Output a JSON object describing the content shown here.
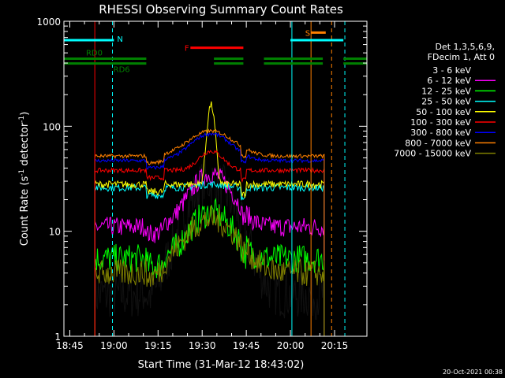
{
  "chart_data": {
    "type": "line",
    "title": "RHESSI Observing Summary Count Rates",
    "xlabel": "Start Time (31-Mar-12 18:43:02)",
    "ylabel": "Count Rate (s⁻¹ detector⁻¹)",
    "ylabel_main": "Count Rate (s",
    "ylabel_exp1": "-1",
    "ylabel_mid": " detector",
    "ylabel_exp2": "-1",
    "ylabel_end": ")",
    "x_unit": "minutes since 18:43:02",
    "xlim": [
      0,
      103
    ],
    "ylim": [
      1,
      1000
    ],
    "yscale": "log",
    "x_ticks": [
      {
        "label": "18:45",
        "value": 2
      },
      {
        "label": "19:00",
        "value": 17
      },
      {
        "label": "19:15",
        "value": 32
      },
      {
        "label": "19:30",
        "value": 47
      },
      {
        "label": "19:45",
        "value": 62
      },
      {
        "label": "20:00",
        "value": 77
      },
      {
        "label": "20:15",
        "value": 92
      }
    ],
    "y_ticks": [
      {
        "label": "1",
        "value": 1
      },
      {
        "label": "10",
        "value": 10
      },
      {
        "label": "100",
        "value": 100
      },
      {
        "label": "1000",
        "value": 1000
      }
    ],
    "legend_header": [
      "Det 1,3,5,6,9,",
      "FDecim 1, Att 0"
    ],
    "series": [
      {
        "name": "3 - 6 keV",
        "color": "#000000",
        "base": 2.5,
        "peak": 30
      },
      {
        "name": "6 - 12 keV",
        "color": "#ff00ff",
        "base": 11,
        "peak": 35
      },
      {
        "name": "12 - 25 keV",
        "color": "#00ff00",
        "base": 5.5,
        "peak": 15
      },
      {
        "name": "25 - 50 keV",
        "color": "#00ffff",
        "base": 26,
        "peak": 28
      },
      {
        "name": "50 - 100 keV",
        "color": "#ffff00",
        "base": 28,
        "peak": 160
      },
      {
        "name": "100 - 300 keV",
        "color": "#ff0000",
        "base": 38,
        "peak": 58
      },
      {
        "name": "300 - 800 keV",
        "color": "#0000ff",
        "base": 47,
        "peak": 85
      },
      {
        "name": "800 - 7000 keV",
        "color": "#ff8000",
        "base": 52,
        "peak": 90
      },
      {
        "name": "7000 - 15000 keV",
        "color": "#808000",
        "base": 4,
        "peak": 13
      }
    ],
    "flags": [
      {
        "label": "N",
        "color": "#00ffff",
        "segments": [
          [
            0,
            17
          ],
          [
            77,
            95
          ]
        ],
        "level": 660
      },
      {
        "label": "RD0",
        "color": "#008000",
        "segments": [
          [
            0,
            28
          ],
          [
            51,
            61
          ],
          [
            68,
            88
          ],
          [
            95,
            103
          ]
        ],
        "level": 440
      },
      {
        "label": "RD6",
        "color": "#008000",
        "segments": [
          [
            0,
            28
          ],
          [
            51,
            61
          ],
          [
            68,
            88
          ],
          [
            95,
            103
          ]
        ],
        "level": 440
      },
      {
        "label": "F",
        "color": "#ff0000",
        "segments": [
          [
            43,
            61
          ]
        ],
        "level": 560
      },
      {
        "label": "S",
        "color": "#ff8000",
        "segments": [
          [
            84,
            89
          ]
        ],
        "level": 780
      }
    ],
    "vertical_markers": [
      {
        "x": 10.5,
        "color": "#ff0000",
        "style": "solid"
      },
      {
        "x": 16.5,
        "color": "#00ffff",
        "style": "dashed"
      },
      {
        "x": 77.5,
        "color": "#00ffff",
        "style": "solid"
      },
      {
        "x": 84,
        "color": "#ff8000",
        "style": "solid"
      },
      {
        "x": 91,
        "color": "#ff8000",
        "style": "dashed"
      },
      {
        "x": 95.5,
        "color": "#00ffff",
        "style": "dashed"
      }
    ]
  },
  "footer_timestamp": "20-Oct-2021 00:38"
}
